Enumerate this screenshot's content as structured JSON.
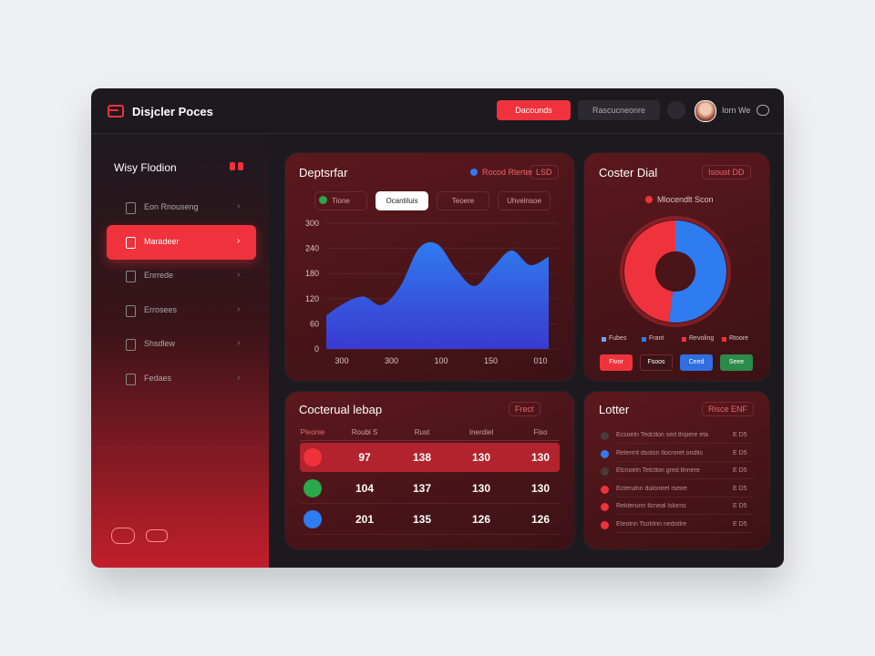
{
  "header": {
    "brand": "Disjcler Poces",
    "primary_button": "Dacounds",
    "secondary_button": "Rascucneonre",
    "user": "Iorn We"
  },
  "sidebar": {
    "title": "Wisy Flodion",
    "items": [
      "Eon Rnouseng",
      "Maradeer",
      "Enrrede",
      "Errosees",
      "Shsdlew",
      "Fedaes"
    ],
    "active": 1
  },
  "area_card": {
    "title": "Deptsrfar",
    "legend": "Rocod Rlerter",
    "badge": "LSD",
    "tabs": [
      "Tione",
      "Ocantiluis",
      "Teoere",
      "Uhvelnsoe"
    ],
    "active_tab": 1,
    "chart": {
      "type": "area",
      "color": "#2f7bf0",
      "values": [
        80,
        110,
        125,
        105,
        150,
        240,
        250,
        190,
        150,
        195,
        235,
        200,
        220
      ],
      "ylim": [
        0,
        300
      ],
      "yticks": [
        0,
        60,
        120,
        180,
        240,
        300
      ],
      "x_labels": [
        "300",
        "300",
        "100",
        "150",
        "010"
      ]
    }
  },
  "donut_card": {
    "title": "Coster Dial",
    "badge": "Isoust DD",
    "legend": "Mlocendlt Scon",
    "chart": {
      "type": "donut",
      "values": [
        52,
        48
      ],
      "colors": [
        "#2f7bf0",
        "#f0323c"
      ]
    },
    "labels": [
      {
        "text": "Fubes",
        "color": "#6aa8f0"
      },
      {
        "text": "Frant",
        "color": "#2f7bf0"
      },
      {
        "text": "Revoling",
        "color": "#f0323c"
      },
      {
        "text": "Rtoore",
        "color": "#f0323c"
      }
    ],
    "buttons": [
      {
        "text": "Fivor",
        "color": "#f0323c"
      },
      {
        "text": "Fsoos",
        "color": "#3a1418"
      },
      {
        "text": "Ceed",
        "color": "#2f6fe0"
      },
      {
        "text": "Seee",
        "color": "#2c8a4a"
      }
    ]
  },
  "table_card": {
    "title": "Cocterual lebap",
    "badge": "Frect",
    "columns": [
      "Pleonie",
      "Roubl S",
      "Rust",
      "Inerdiel",
      "Fiso"
    ],
    "highlight_row": 0,
    "rows": [
      {
        "icon": "#f0323c",
        "cells": [
          97,
          138,
          130,
          130
        ]
      },
      {
        "icon": "#2aa84a",
        "cells": [
          104,
          137,
          130,
          130
        ]
      },
      {
        "icon": "#2f7bf0",
        "cells": [
          201,
          135,
          126,
          126
        ]
      }
    ]
  },
  "list_card": {
    "title": "Lotter",
    "badge": "Risce ENF",
    "items": [
      {
        "dot": "#4a3a3c",
        "text": "Ecsoeln Tedctlon sed tlnpere eta",
        "meta": "E D5"
      },
      {
        "dot": "#2f7bf0",
        "text": "Relerrnt dsolon tlocroret ondlis",
        "meta": "E D5"
      },
      {
        "dot": "#4a3a3c",
        "text": "Elcnoeln Tetctlon gred llnnere",
        "meta": "E D5"
      },
      {
        "dot": "#f0323c",
        "text": "Ecterulnn dulontrel rseire",
        "meta": "E D5"
      },
      {
        "dot": "#f0323c",
        "text": "Rekterunn tlcneal lslorns",
        "meta": "E D5"
      },
      {
        "dot": "#f0323c",
        "text": "Eteolnn Tsotrlnn nedotlre",
        "meta": "E D5"
      }
    ]
  }
}
